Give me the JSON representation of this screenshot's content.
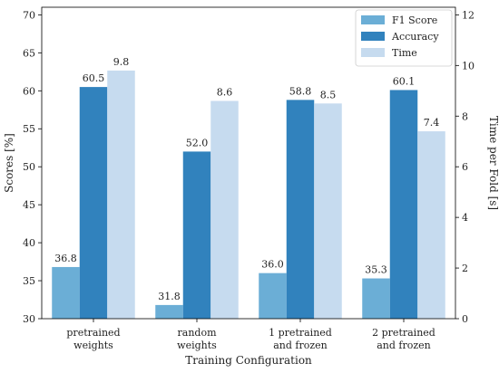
{
  "chart_data": {
    "type": "bar",
    "categories": [
      [
        "pretrained",
        "weights"
      ],
      [
        "random",
        "weights"
      ],
      [
        "1 pretrained",
        "and frozen"
      ],
      [
        "2 pretrained",
        "and frozen"
      ]
    ],
    "xlabel": "Training Configuration",
    "ylabel_left": "Scores [%]",
    "ylabel_right": "Time per Fold [s]",
    "ylim_left": [
      30,
      71
    ],
    "ylim_right": [
      0,
      12.3
    ],
    "yticks_left": [
      30,
      35,
      40,
      45,
      50,
      55,
      60,
      65,
      70
    ],
    "yticks_right": [
      0,
      2,
      4,
      6,
      8,
      10,
      12
    ],
    "series": [
      {
        "name": "F1 Score",
        "axis": "left",
        "color": "#6baed6",
        "values": [
          36.8,
          31.8,
          36.0,
          35.3
        ],
        "labels": [
          "36.8",
          "31.8",
          "36.0",
          "35.3"
        ]
      },
      {
        "name": "Accuracy",
        "axis": "left",
        "color": "#3182bd",
        "values": [
          60.5,
          52.0,
          58.8,
          60.1
        ],
        "labels": [
          "60.5",
          "52.0",
          "58.8",
          "60.1"
        ]
      },
      {
        "name": "Time",
        "axis": "right",
        "color": "#c6dbef",
        "values": [
          9.8,
          8.6,
          8.5,
          7.4
        ],
        "labels": [
          "9.8",
          "8.6",
          "8.5",
          "7.4"
        ]
      }
    ],
    "legend": "top-right",
    "grid": false
  }
}
